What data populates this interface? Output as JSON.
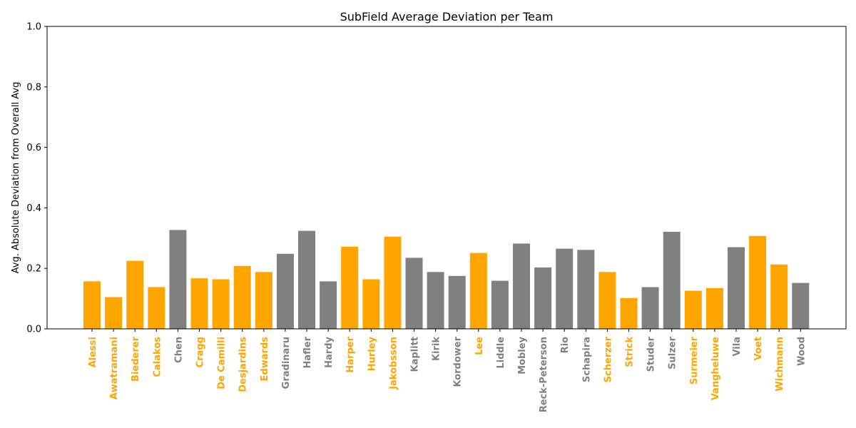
{
  "chart_data": {
    "type": "bar",
    "title": "SubField Average Deviation per Team",
    "xlabel": "",
    "ylabel": "Avg. Absolute Deviation from Overall Avg",
    "ylim": [
      0,
      1.0
    ],
    "y_ticks": [
      "0.0",
      "0.2",
      "0.4",
      "0.6",
      "0.8",
      "1.0"
    ],
    "y_tick_values": [
      0,
      0.2,
      0.4,
      0.6,
      0.8,
      1.0
    ],
    "grid": false,
    "categories": [
      "Alessi",
      "Awatramani",
      "Biederer",
      "Calakos",
      "Chen",
      "Cragg",
      "De Camilli",
      "Desjardins",
      "Edwards",
      "Gradinaru",
      "Hafler",
      "Hardy",
      "Harper",
      "Hurley",
      "Jakobsson",
      "Kaplitt",
      "Kirik",
      "Kordower",
      "Lee",
      "Liddle",
      "Mobley",
      "Reck-Peterson",
      "Rio",
      "Schapira",
      "Scherzer",
      "Strick",
      "Studer",
      "Sulzer",
      "Surmeier",
      "Vangheluwe",
      "Vila",
      "Voet",
      "Wichmann",
      "Wood"
    ],
    "values": [
      0.157,
      0.105,
      0.225,
      0.138,
      0.327,
      0.167,
      0.164,
      0.208,
      0.188,
      0.248,
      0.324,
      0.157,
      0.272,
      0.164,
      0.305,
      0.235,
      0.188,
      0.175,
      0.251,
      0.159,
      0.282,
      0.203,
      0.265,
      0.261,
      0.188,
      0.102,
      0.138,
      0.321,
      0.126,
      0.135,
      0.27,
      0.307,
      0.213,
      0.152
    ],
    "groups": [
      "orange",
      "orange",
      "orange",
      "orange",
      "gray",
      "orange",
      "orange",
      "orange",
      "orange",
      "gray",
      "gray",
      "gray",
      "orange",
      "orange",
      "orange",
      "gray",
      "gray",
      "gray",
      "orange",
      "gray",
      "gray",
      "gray",
      "gray",
      "gray",
      "orange",
      "orange",
      "gray",
      "gray",
      "orange",
      "orange",
      "gray",
      "orange",
      "orange",
      "gray"
    ],
    "colors": {
      "orange": "#ffa500",
      "gray": "#808080"
    }
  }
}
